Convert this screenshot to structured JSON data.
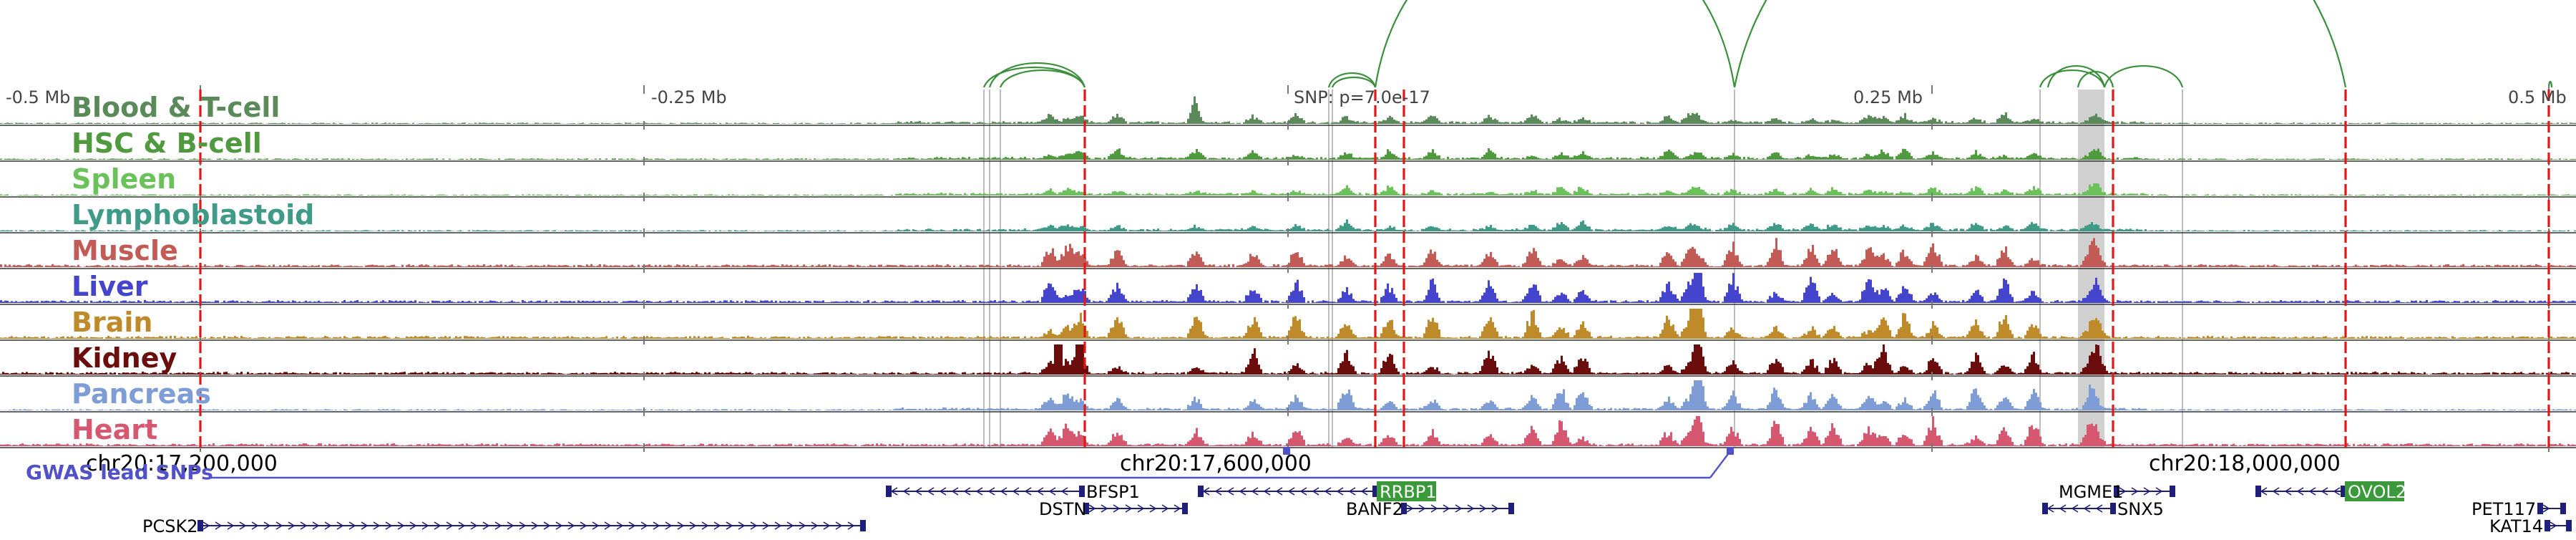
{
  "scale_labels": [
    "-0.5 Mb",
    "-0.25 Mb",
    "0.25 Mb",
    "0.5 Mb"
  ],
  "snp_annotation": "SNP: p=7.0e-17",
  "tracks": [
    {
      "name": "Blood & T-cell",
      "color": "#5a8a5a"
    },
    {
      "name": "HSC & B-cell",
      "color": "#4f9a3f"
    },
    {
      "name": "Spleen",
      "color": "#6bc25a"
    },
    {
      "name": "Lymphoblastoid",
      "color": "#3f9a87"
    },
    {
      "name": "Muscle",
      "color": "#c25a55"
    },
    {
      "name": "Liver",
      "color": "#4444cc"
    },
    {
      "name": "Brain",
      "color": "#bf8a2a"
    },
    {
      "name": "Kidney",
      "color": "#6b0d0d"
    },
    {
      "name": "Pancreas",
      "color": "#7e9dd6"
    },
    {
      "name": "Heart",
      "color": "#d65870"
    }
  ],
  "coordinate_labels": [
    "chr20:17,200,000",
    "chr20:17,600,000",
    "chr20:18,000,000"
  ],
  "gwas_label": "GWAS lead SNPs",
  "genes": [
    {
      "name": "BFSP1",
      "strand": "-",
      "highlight": false
    },
    {
      "name": "DSTN",
      "strand": "+",
      "highlight": false
    },
    {
      "name": "RRBP1",
      "strand": "-",
      "highlight": true
    },
    {
      "name": "BANF2",
      "strand": "+",
      "highlight": false
    },
    {
      "name": "PCSK2",
      "strand": "+",
      "highlight": false
    },
    {
      "name": "MGME1",
      "strand": "+",
      "highlight": false
    },
    {
      "name": "SNX5",
      "strand": "-",
      "highlight": false
    },
    {
      "name": "OVOL2",
      "strand": "-",
      "highlight": true
    },
    {
      "name": "PET117",
      "strand": "+",
      "highlight": false
    },
    {
      "name": "KAT14",
      "strand": "+",
      "highlight": false
    }
  ],
  "colors": {
    "loop_arc": "#3a8f3a",
    "credible_set_line": "#e01818",
    "gwas": "#5252c8",
    "highlight_gene_bg": "#3a9a3a",
    "gene_model": "#1f1f7a",
    "highlight_region": "#c8c8c8"
  }
}
